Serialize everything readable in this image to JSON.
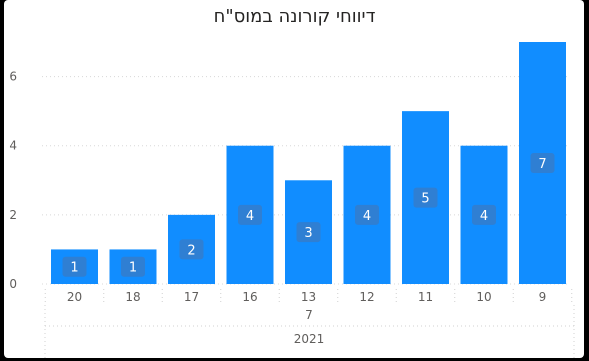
{
  "chart_data": {
    "type": "bar",
    "title": "דיווחי קורונה במוס\"ח",
    "categories": [
      "20",
      "18",
      "17",
      "16",
      "13",
      "12",
      "11",
      "10",
      "9"
    ],
    "values": [
      1,
      1,
      2,
      4,
      3,
      4,
      5,
      4,
      7
    ],
    "month_label": "7",
    "year_label": "2021",
    "yticks": [
      0,
      2,
      4,
      6
    ],
    "ylim": [
      0,
      7
    ],
    "grid": true,
    "data_labels": true,
    "bar_color": "#118DFF",
    "label_bg_color": "#2F7FD3"
  }
}
